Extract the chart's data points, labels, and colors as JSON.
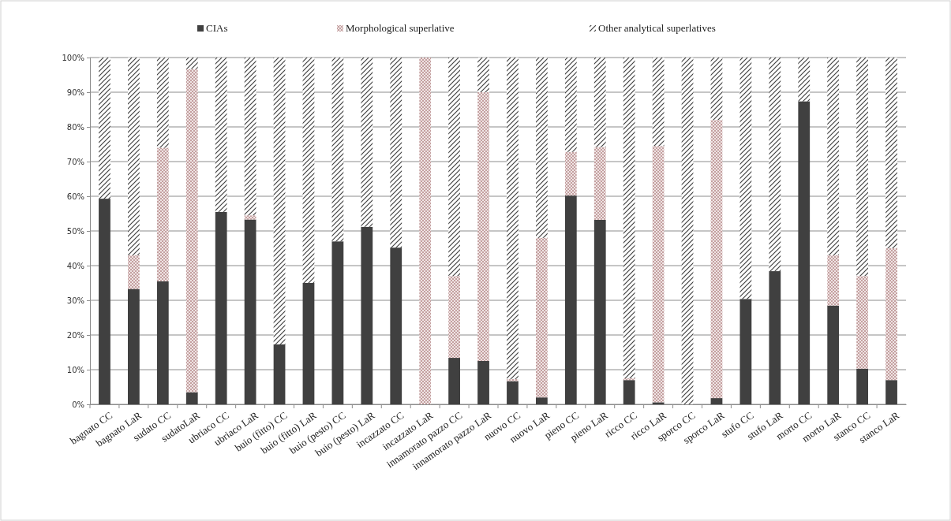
{
  "chart_data": {
    "type": "bar",
    "stacked": true,
    "categories": [
      "bagnato CC",
      "bagnato LaR",
      "sudato CC",
      "sudatoLaR",
      "ubriaco CC",
      "ubriaco LaR",
      "buio (fitto) CC",
      "buio (fitto) LaR",
      "buio (pesto) CC",
      "buio (pesto) LaR",
      "incazzato CC",
      "incazzato LaR",
      "innamorato pazzo CC",
      "innamorato pazzo LaR",
      "nuovo CC",
      "nuovo LaR",
      "pieno CC",
      "pieno LaR",
      "ricco CC",
      "ricco LaR",
      "sporco  CC",
      "sporco LaR",
      "stufo CC",
      "stufo LaR",
      "morto CC",
      "morto LaR",
      "stanco CC",
      "stanco LaR"
    ],
    "series": [
      {
        "name": "CIAs",
        "color": "#404040",
        "values": [
          59.3,
          33.3,
          35.5,
          3.5,
          55.5,
          53.3,
          17.3,
          35,
          47,
          51.2,
          45.2,
          0,
          13.4,
          12.5,
          6.7,
          2,
          60.2,
          53.2,
          7,
          0.6,
          0,
          1.8,
          30.4,
          38.4,
          87.4,
          28.5,
          10.3,
          7
        ]
      },
      {
        "name": "Morphological superlative",
        "color": "#c4a0a0",
        "values": [
          0,
          9.7,
          38.5,
          93.2,
          0,
          1.2,
          0,
          0,
          0,
          0,
          0,
          100,
          23.6,
          77.5,
          0.6,
          46,
          12.6,
          21,
          0.5,
          73.9,
          0,
          80.2,
          0,
          0,
          0,
          14.5,
          26.7,
          38
        ]
      },
      {
        "name": "Other analytical superlatives",
        "color": "#404040",
        "values": [
          40.7,
          57,
          26,
          3.3,
          44.5,
          45.5,
          82.7,
          65,
          53,
          48.8,
          54.8,
          0,
          63,
          10,
          92.7,
          52,
          27.2,
          25.8,
          92.5,
          25.5,
          100,
          18,
          69.6,
          61.6,
          12.6,
          57,
          63,
          55
        ]
      }
    ],
    "ylim": [
      0,
      100
    ],
    "yticks": [
      {
        "value": 0,
        "label": "0%"
      },
      {
        "value": 10,
        "label": "10%"
      },
      {
        "value": 20,
        "label": "20%"
      },
      {
        "value": 30,
        "label": "30%"
      },
      {
        "value": 40,
        "label": "40%"
      },
      {
        "value": 50,
        "label": "50%"
      },
      {
        "value": 60,
        "label": "60%"
      },
      {
        "value": 70,
        "label": "70%"
      },
      {
        "value": 80,
        "label": "80%"
      },
      {
        "value": 90,
        "label": "90%"
      },
      {
        "value": 100,
        "label": "100%"
      }
    ],
    "grid": "y",
    "legend": "top"
  }
}
